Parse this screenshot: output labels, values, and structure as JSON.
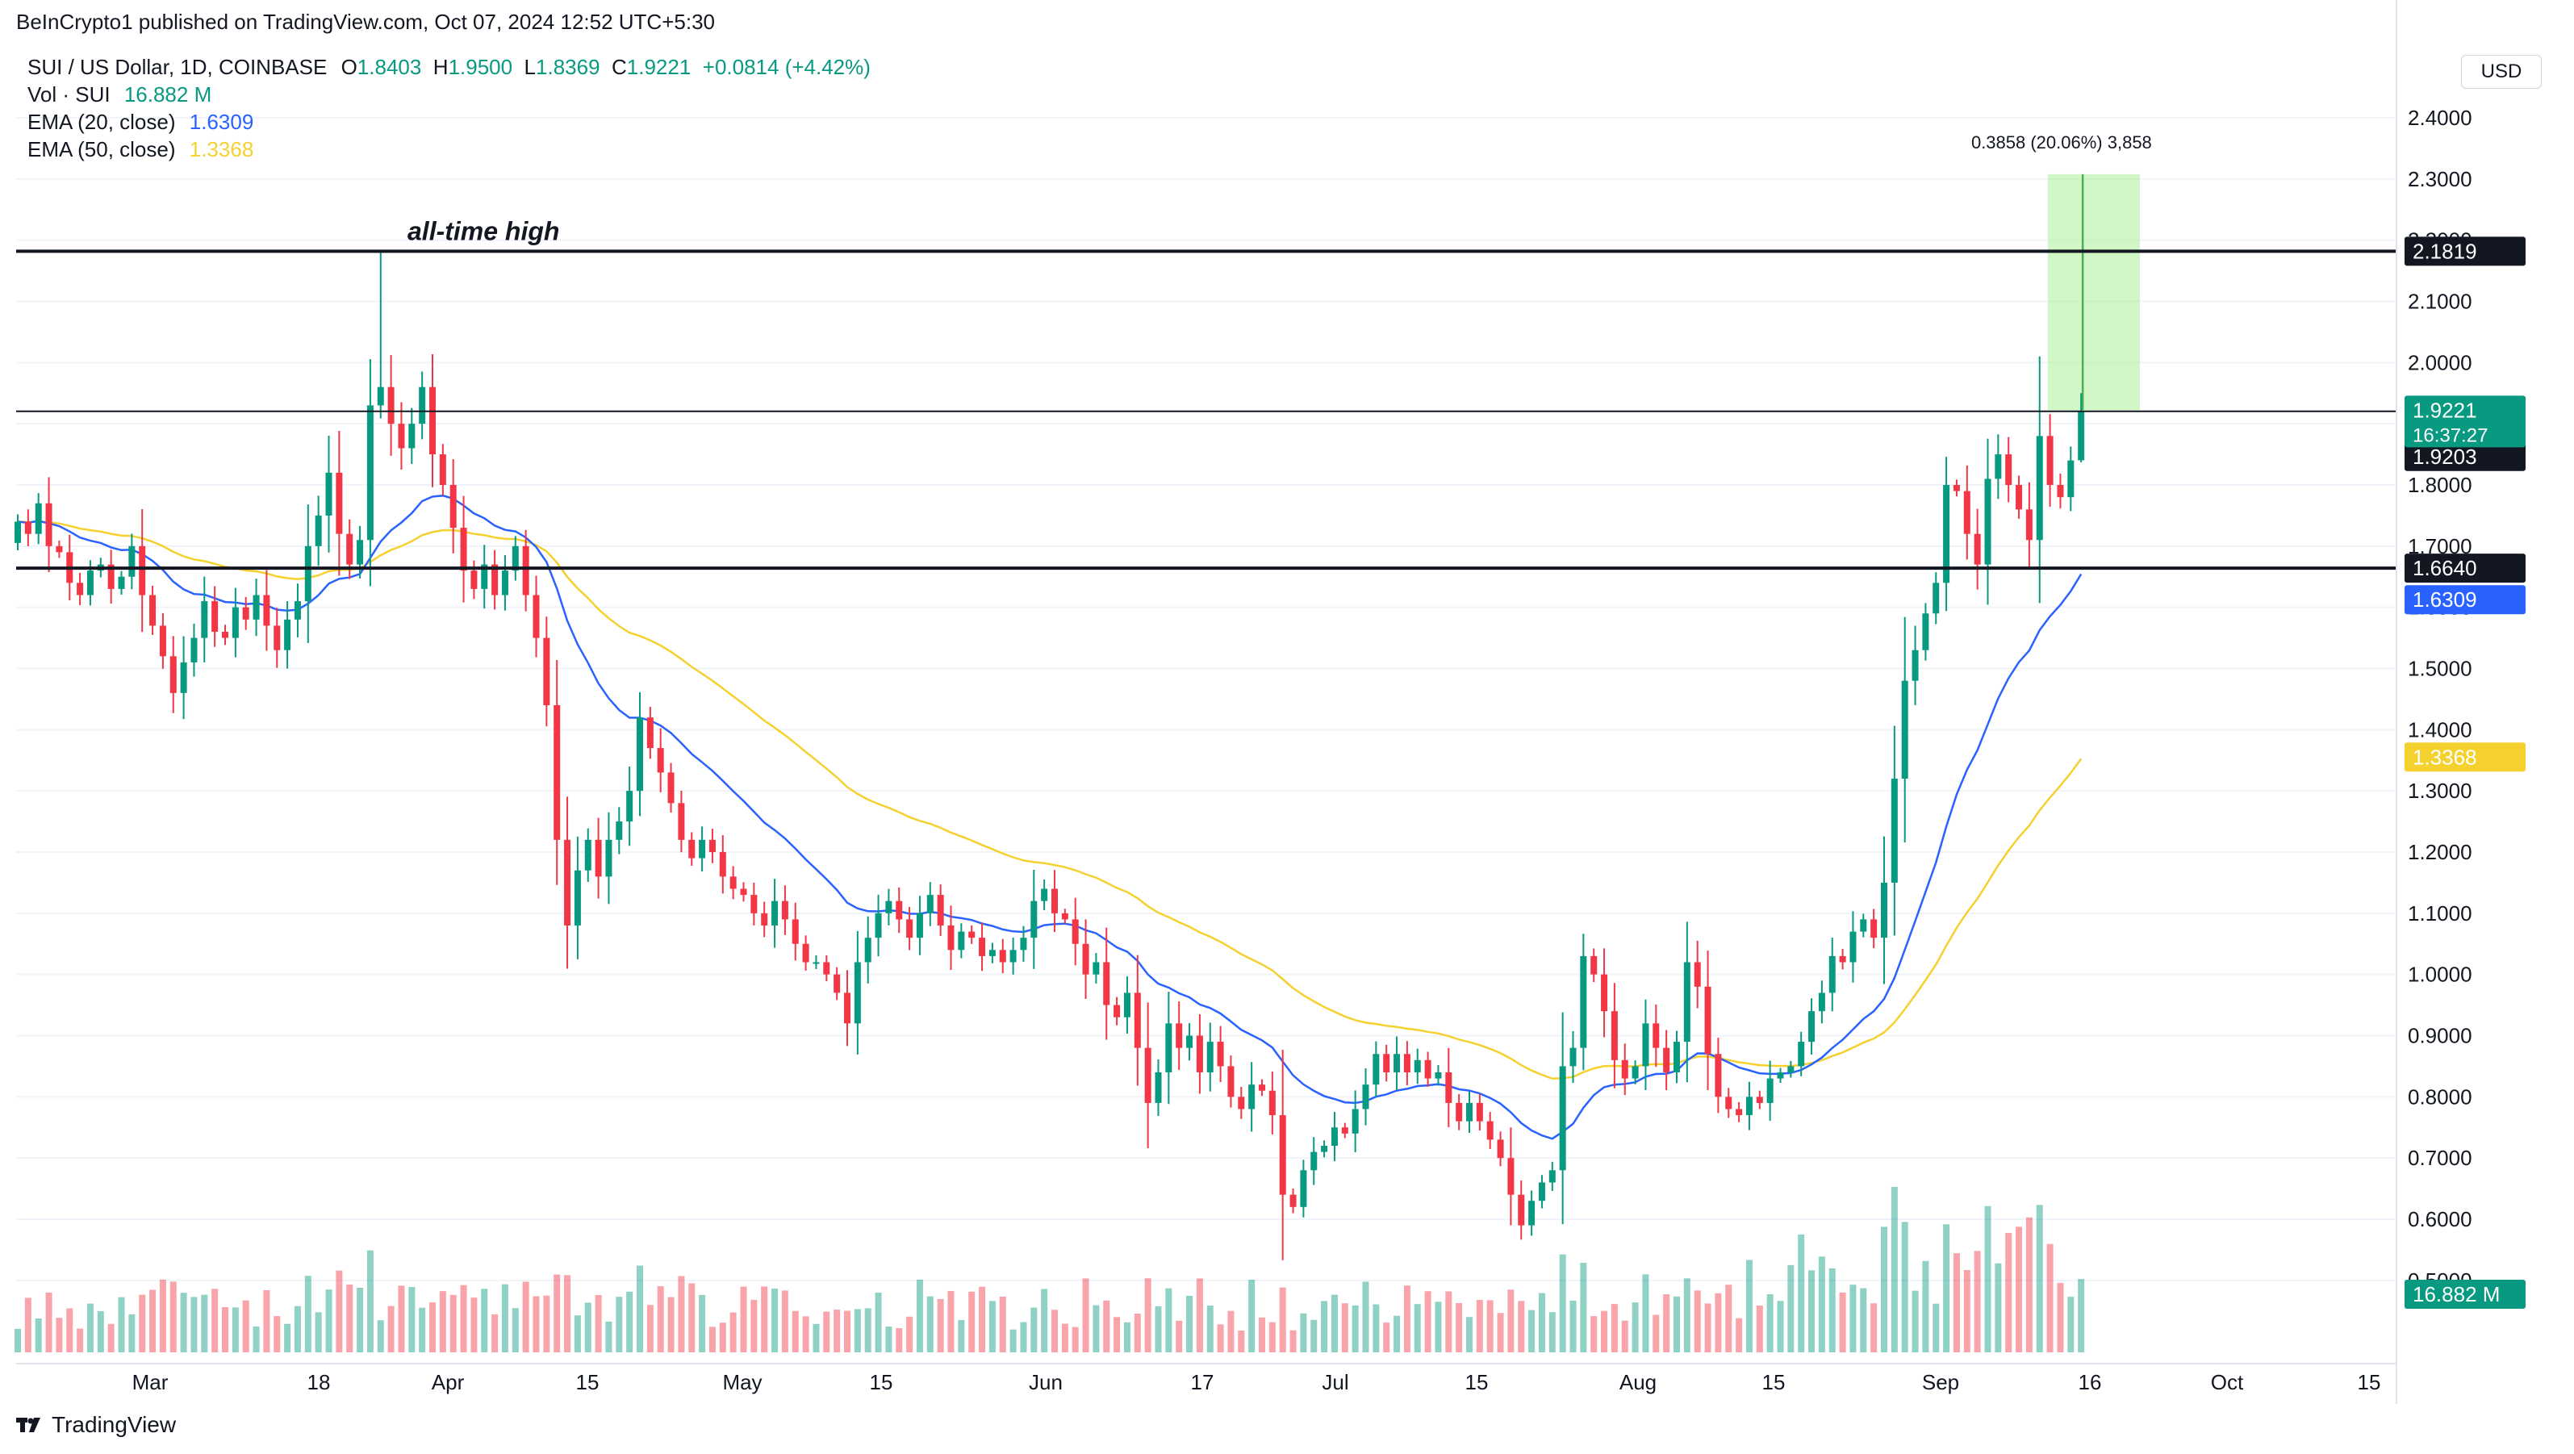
{
  "header": {
    "text": "BeInCrypto1 published on TradingView.com, Oct 07, 2024 12:52 UTC+5:30"
  },
  "legend": {
    "symbol": "SUI / US Dollar, 1D, COINBASE",
    "open_label": "O",
    "open": "1.8403",
    "high_label": "H",
    "high": "1.9500",
    "low_label": "L",
    "low": "1.8369",
    "close_label": "C",
    "close": "1.9221",
    "change": "+0.0814 (+4.42%)",
    "vol_label": "Vol · SUI",
    "vol_value": "16.882 M",
    "ema20_label": "EMA (20, close)",
    "ema20_value": "1.6309",
    "ema50_label": "EMA (50, close)",
    "ema50_value": "1.3368"
  },
  "currency": "USD",
  "footer": {
    "brand": "TradingView"
  },
  "colors": {
    "up": "#089981",
    "down": "#f23645",
    "ema20": "#2962ff",
    "ema50": "#f5d130",
    "measure": "#b2f2a0"
  },
  "chart_data": {
    "type": "candlestick",
    "y_axis": {
      "ticks": [
        "0.5000",
        "0.6000",
        "0.7000",
        "0.8000",
        "0.9000",
        "1.0000",
        "1.1000",
        "1.2000",
        "1.3000",
        "1.4000",
        "1.5000",
        "1.6000",
        "1.7000",
        "1.8000",
        "1.9000",
        "2.0000",
        "2.1000",
        "2.2000",
        "2.3000",
        "2.4000"
      ],
      "range": [
        0.49,
        2.43
      ]
    },
    "x_axis": {
      "labels": [
        "Mar",
        "18",
        "Apr",
        "15",
        "May",
        "15",
        "Jun",
        "17",
        "Jul",
        "15",
        "Aug",
        "15",
        "Sep",
        "16",
        "Oct",
        "15"
      ]
    },
    "annotation": "all-time high",
    "levels": [
      {
        "value": 2.1819,
        "label": "2.1819",
        "weight": "heavy"
      },
      {
        "value": 1.9203,
        "label": "1.9203",
        "weight": "thin"
      },
      {
        "value": 1.664,
        "label": "1.6640",
        "weight": "heavy"
      }
    ],
    "price_tags": [
      {
        "value": 1.9221,
        "label": "1.9221",
        "sub": "16:37:27",
        "color": "#089981"
      },
      {
        "value": 1.6309,
        "label": "1.6309",
        "color": "#2962ff"
      },
      {
        "value": 1.3368,
        "label": "1.3368",
        "color": "#f5d130"
      }
    ],
    "volume_tag": {
      "label": "16.882 M"
    },
    "measure": {
      "from": 1.9221,
      "to": 2.3079,
      "label": "0.3858 (20.06%) 3,858"
    },
    "closes": [
      1.74,
      1.72,
      1.77,
      1.7,
      1.69,
      1.64,
      1.62,
      1.66,
      1.67,
      1.63,
      1.65,
      1.7,
      1.62,
      1.57,
      1.52,
      1.46,
      1.51,
      1.55,
      1.61,
      1.56,
      1.55,
      1.6,
      1.58,
      1.62,
      1.57,
      1.53,
      1.58,
      1.61,
      1.7,
      1.75,
      1.82,
      1.72,
      1.67,
      1.71,
      1.93,
      1.96,
      1.9,
      1.86,
      1.9,
      1.96,
      1.85,
      1.8,
      1.73,
      1.66,
      1.63,
      1.67,
      1.62,
      1.66,
      1.7,
      1.62,
      1.55,
      1.44,
      1.22,
      1.08,
      1.17,
      1.22,
      1.16,
      1.22,
      1.25,
      1.3,
      1.42,
      1.37,
      1.33,
      1.28,
      1.22,
      1.19,
      1.22,
      1.2,
      1.16,
      1.14,
      1.13,
      1.1,
      1.08,
      1.12,
      1.09,
      1.05,
      1.02,
      1.02,
      1.0,
      0.97,
      0.92,
      1.02,
      1.06,
      1.1,
      1.12,
      1.09,
      1.06,
      1.1,
      1.13,
      1.08,
      1.04,
      1.07,
      1.06,
      1.03,
      1.04,
      1.02,
      1.04,
      1.06,
      1.12,
      1.14,
      1.1,
      1.09,
      1.05,
      1.0,
      1.02,
      0.95,
      0.93,
      0.97,
      0.88,
      0.79,
      0.84,
      0.92,
      0.88,
      0.9,
      0.84,
      0.89,
      0.85,
      0.8,
      0.78,
      0.82,
      0.81,
      0.77,
      0.64,
      0.62,
      0.68,
      0.71,
      0.72,
      0.75,
      0.74,
      0.78,
      0.82,
      0.87,
      0.84,
      0.87,
      0.84,
      0.86,
      0.83,
      0.84,
      0.79,
      0.76,
      0.79,
      0.76,
      0.73,
      0.7,
      0.64,
      0.59,
      0.63,
      0.66,
      0.68,
      0.85,
      0.88,
      1.03,
      1.0,
      0.94,
      0.86,
      0.83,
      0.85,
      0.92,
      0.88,
      0.84,
      0.89,
      1.02,
      0.98,
      0.87,
      0.8,
      0.78,
      0.77,
      0.8,
      0.79,
      0.83,
      0.84,
      0.85,
      0.89,
      0.94,
      0.97,
      1.03,
      1.02,
      1.07,
      1.09,
      1.06,
      1.15,
      1.32,
      1.48,
      1.53,
      1.59,
      1.64,
      1.8,
      1.79,
      1.72,
      1.67,
      1.81,
      1.85,
      1.8,
      1.76,
      1.71,
      1.88,
      1.8,
      1.78,
      1.84,
      1.92
    ]
  }
}
